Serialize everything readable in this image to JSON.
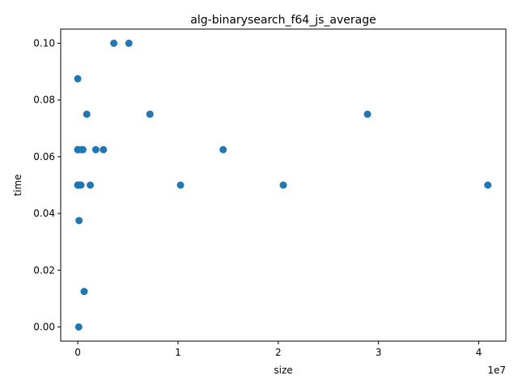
{
  "chart_data": {
    "type": "scatter",
    "title": "alg-binarysearch_f64_js_average",
    "xlabel": "size",
    "ylabel": "time",
    "x_offset_label": "1e7",
    "xlim": [
      -1700000,
      42700000
    ],
    "ylim": [
      -0.005,
      0.105
    ],
    "grid": false,
    "marker_color": "#1f77b4",
    "xticks": [
      {
        "value": 0,
        "label": "0"
      },
      {
        "value": 10000000,
        "label": "1"
      },
      {
        "value": 20000000,
        "label": "2"
      },
      {
        "value": 30000000,
        "label": "3"
      },
      {
        "value": 40000000,
        "label": "4"
      }
    ],
    "yticks": [
      {
        "value": 0.0,
        "label": "0.00"
      },
      {
        "value": 0.02,
        "label": "0.02"
      },
      {
        "value": 0.04,
        "label": "0.04"
      },
      {
        "value": 0.06,
        "label": "0.06"
      },
      {
        "value": 0.08,
        "label": "0.08"
      },
      {
        "value": 0.1,
        "label": "0.10"
      }
    ],
    "points": [
      {
        "x": 500,
        "y": 0.0875
      },
      {
        "x": 1000,
        "y": 0.05
      },
      {
        "x": 2000,
        "y": 0.0625
      },
      {
        "x": 4000,
        "y": 0.05
      },
      {
        "x": 8000,
        "y": 0.0625
      },
      {
        "x": 16000,
        "y": 0.05
      },
      {
        "x": 32000,
        "y": 0.05
      },
      {
        "x": 64000,
        "y": 0.0625
      },
      {
        "x": 128000,
        "y": 0.0375
      },
      {
        "x": 100000,
        "y": 0.0
      },
      {
        "x": 256000,
        "y": 0.05
      },
      {
        "x": 320000,
        "y": 0.05
      },
      {
        "x": 400000,
        "y": 0.0625
      },
      {
        "x": 512000,
        "y": 0.0625
      },
      {
        "x": 640000,
        "y": 0.0125
      },
      {
        "x": 900000,
        "y": 0.075
      },
      {
        "x": 1250000,
        "y": 0.05
      },
      {
        "x": 1800000,
        "y": 0.0625
      },
      {
        "x": 2560000,
        "y": 0.0625
      },
      {
        "x": 3600000,
        "y": 0.1
      },
      {
        "x": 5100000,
        "y": 0.1
      },
      {
        "x": 7200000,
        "y": 0.075
      },
      {
        "x": 10250000,
        "y": 0.05
      },
      {
        "x": 14500000,
        "y": 0.0625
      },
      {
        "x": 20500000,
        "y": 0.05
      },
      {
        "x": 28900000,
        "y": 0.075
      },
      {
        "x": 40900000,
        "y": 0.05
      }
    ]
  }
}
